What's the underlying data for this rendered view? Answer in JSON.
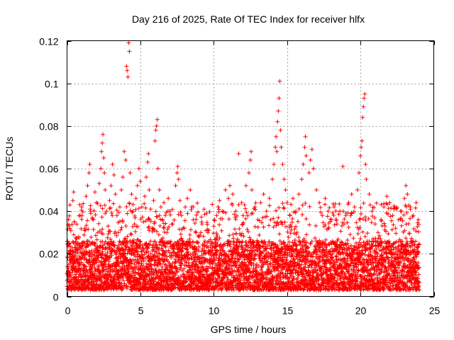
{
  "chart_data": {
    "type": "scatter",
    "title": "Day 216 of 2025, Rate Of TEC Index for receiver hlfx",
    "xlabel": "GPS time / hours",
    "ylabel": "ROTI / TECUs",
    "xlim": [
      0,
      25
    ],
    "ylim": [
      0,
      0.12
    ],
    "xticks": [
      0,
      5,
      10,
      15,
      20,
      25
    ],
    "xtick_labels": [
      "0",
      "5",
      "10",
      "15",
      "20",
      "25"
    ],
    "yticks": [
      0,
      0.02,
      0.04,
      0.06,
      0.08,
      0.1,
      0.12
    ],
    "ytick_labels": [
      "0",
      "0.02",
      "0.04",
      "0.06",
      "0.08",
      "0.1",
      "0.12"
    ],
    "grid": true,
    "marker": "+",
    "series": [
      {
        "name": "ROTI",
        "color": "#ff0000",
        "points": [
          [
            0.05,
            0.01
          ],
          [
            0.1,
            0.013
          ],
          [
            0.15,
            0.025
          ],
          [
            0.2,
            0.032
          ],
          [
            0.3,
            0.018
          ],
          [
            0.35,
            0.014
          ],
          [
            0.4,
            0.045
          ],
          [
            0.45,
            0.049
          ],
          [
            0.5,
            0.035
          ],
          [
            0.6,
            0.022
          ],
          [
            0.7,
            0.016
          ],
          [
            0.8,
            0.028
          ],
          [
            0.9,
            0.038
          ],
          [
            1.0,
            0.042
          ],
          [
            1.1,
            0.02
          ],
          [
            1.2,
            0.031
          ],
          [
            1.3,
            0.047
          ],
          [
            1.4,
            0.052
          ],
          [
            1.5,
            0.058
          ],
          [
            1.55,
            0.062
          ],
          [
            1.6,
            0.04
          ],
          [
            1.7,
            0.025
          ],
          [
            1.8,
            0.036
          ],
          [
            1.9,
            0.049
          ],
          [
            2.0,
            0.044
          ],
          [
            2.1,
            0.03
          ],
          [
            2.2,
            0.053
          ],
          [
            2.3,
            0.06
          ],
          [
            2.35,
            0.068
          ],
          [
            2.4,
            0.072
          ],
          [
            2.45,
            0.076
          ],
          [
            2.5,
            0.065
          ],
          [
            2.55,
            0.058
          ],
          [
            2.6,
            0.05
          ],
          [
            2.7,
            0.04
          ],
          [
            2.8,
            0.033
          ],
          [
            2.9,
            0.045
          ],
          [
            3.0,
            0.052
          ],
          [
            3.1,
            0.062
          ],
          [
            3.2,
            0.057
          ],
          [
            3.3,
            0.048
          ],
          [
            3.4,
            0.038
          ],
          [
            3.5,
            0.03
          ],
          [
            3.6,
            0.042
          ],
          [
            3.7,
            0.05
          ],
          [
            3.8,
            0.056
          ],
          [
            3.9,
            0.068
          ],
          [
            4.0,
            0.064
          ],
          [
            4.05,
            0.108
          ],
          [
            4.1,
            0.106
          ],
          [
            4.15,
            0.103
          ],
          [
            4.2,
            0.119
          ],
          [
            4.25,
            0.115
          ],
          [
            4.3,
            0.058
          ],
          [
            4.4,
            0.048
          ],
          [
            4.5,
            0.04
          ],
          [
            4.6,
            0.034
          ],
          [
            4.7,
            0.046
          ],
          [
            4.8,
            0.052
          ],
          [
            4.9,
            0.06
          ],
          [
            5.0,
            0.054
          ],
          [
            5.1,
            0.042
          ],
          [
            5.2,
            0.035
          ],
          [
            5.3,
            0.047
          ],
          [
            5.4,
            0.056
          ],
          [
            5.5,
            0.063
          ],
          [
            5.55,
            0.067
          ],
          [
            5.6,
            0.05
          ],
          [
            5.7,
            0.041
          ],
          [
            5.8,
            0.032
          ],
          [
            5.9,
            0.045
          ],
          [
            6.0,
            0.073
          ],
          [
            6.05,
            0.078
          ],
          [
            6.1,
            0.08
          ],
          [
            6.15,
            0.083
          ],
          [
            6.2,
            0.06
          ],
          [
            6.3,
            0.05
          ],
          [
            6.4,
            0.042
          ],
          [
            6.5,
            0.036
          ],
          [
            6.6,
            0.044
          ],
          [
            6.7,
            0.038
          ],
          [
            6.8,
            0.03
          ],
          [
            6.9,
            0.046
          ],
          [
            7.0,
            0.04
          ],
          [
            7.2,
            0.034
          ],
          [
            7.4,
            0.052
          ],
          [
            7.5,
            0.058
          ],
          [
            7.55,
            0.061
          ],
          [
            7.6,
            0.055
          ],
          [
            7.7,
            0.045
          ],
          [
            7.8,
            0.038
          ],
          [
            8.0,
            0.032
          ],
          [
            8.2,
            0.046
          ],
          [
            8.4,
            0.05
          ],
          [
            8.5,
            0.042
          ],
          [
            8.6,
            0.036
          ],
          [
            8.8,
            0.03
          ],
          [
            9.0,
            0.028
          ],
          [
            9.2,
            0.034
          ],
          [
            9.4,
            0.026
          ],
          [
            9.6,
            0.03
          ],
          [
            9.8,
            0.024
          ],
          [
            10.0,
            0.033
          ],
          [
            10.2,
            0.038
          ],
          [
            10.4,
            0.045
          ],
          [
            10.6,
            0.04
          ],
          [
            10.8,
            0.05
          ],
          [
            11.0,
            0.046
          ],
          [
            11.1,
            0.052
          ],
          [
            11.3,
            0.048
          ],
          [
            11.5,
            0.04
          ],
          [
            11.7,
            0.067
          ],
          [
            11.9,
            0.044
          ],
          [
            12.0,
            0.038
          ],
          [
            12.2,
            0.052
          ],
          [
            12.4,
            0.058
          ],
          [
            12.5,
            0.064
          ],
          [
            12.55,
            0.068
          ],
          [
            12.6,
            0.05
          ],
          [
            12.8,
            0.042
          ],
          [
            13.0,
            0.036
          ],
          [
            13.2,
            0.044
          ],
          [
            13.4,
            0.048
          ],
          [
            13.6,
            0.04
          ],
          [
            13.8,
            0.046
          ],
          [
            14.0,
            0.055
          ],
          [
            14.1,
            0.062
          ],
          [
            14.2,
            0.07
          ],
          [
            14.25,
            0.075
          ],
          [
            14.3,
            0.068
          ],
          [
            14.35,
            0.082
          ],
          [
            14.4,
            0.087
          ],
          [
            14.45,
            0.093
          ],
          [
            14.5,
            0.101
          ],
          [
            14.55,
            0.078
          ],
          [
            14.6,
            0.07
          ],
          [
            14.7,
            0.062
          ],
          [
            14.8,
            0.055
          ],
          [
            14.9,
            0.05
          ],
          [
            15.0,
            0.044
          ],
          [
            15.2,
            0.038
          ],
          [
            15.4,
            0.046
          ],
          [
            15.6,
            0.04
          ],
          [
            15.8,
            0.048
          ],
          [
            16.0,
            0.055
          ],
          [
            16.1,
            0.062
          ],
          [
            16.2,
            0.07
          ],
          [
            16.25,
            0.075
          ],
          [
            16.3,
            0.066
          ],
          [
            16.5,
            0.058
          ],
          [
            16.6,
            0.064
          ],
          [
            16.7,
            0.069
          ],
          [
            16.8,
            0.06
          ],
          [
            17.0,
            0.05
          ],
          [
            17.2,
            0.044
          ],
          [
            17.4,
            0.038
          ],
          [
            17.6,
            0.046
          ],
          [
            17.8,
            0.04
          ],
          [
            18.0,
            0.036
          ],
          [
            18.2,
            0.042
          ],
          [
            18.4,
            0.034
          ],
          [
            18.6,
            0.04
          ],
          [
            18.8,
            0.061
          ],
          [
            19.0,
            0.038
          ],
          [
            19.2,
            0.044
          ],
          [
            19.4,
            0.048
          ],
          [
            19.6,
            0.042
          ],
          [
            19.8,
            0.05
          ],
          [
            19.9,
            0.058
          ],
          [
            20.0,
            0.066
          ],
          [
            20.05,
            0.07
          ],
          [
            20.1,
            0.073
          ],
          [
            20.15,
            0.084
          ],
          [
            20.2,
            0.089
          ],
          [
            20.25,
            0.093
          ],
          [
            20.3,
            0.095
          ],
          [
            20.35,
            0.062
          ],
          [
            20.4,
            0.055
          ],
          [
            20.6,
            0.048
          ],
          [
            20.8,
            0.04
          ],
          [
            21.0,
            0.034
          ],
          [
            21.2,
            0.03
          ],
          [
            21.4,
            0.036
          ],
          [
            21.6,
            0.042
          ],
          [
            21.8,
            0.047
          ],
          [
            22.0,
            0.044
          ],
          [
            22.2,
            0.038
          ],
          [
            22.4,
            0.032
          ],
          [
            22.6,
            0.036
          ],
          [
            22.8,
            0.04
          ],
          [
            23.0,
            0.046
          ],
          [
            23.1,
            0.052
          ],
          [
            23.2,
            0.048
          ],
          [
            23.4,
            0.042
          ],
          [
            23.6,
            0.038
          ],
          [
            23.8,
            0.044
          ],
          [
            23.95,
            0.036
          ]
        ],
        "baseline_band": {
          "x_from": 0,
          "x_to": 24,
          "step_hours": 0.02,
          "y_low": 0.003,
          "y_high": 0.026
        }
      }
    ]
  }
}
